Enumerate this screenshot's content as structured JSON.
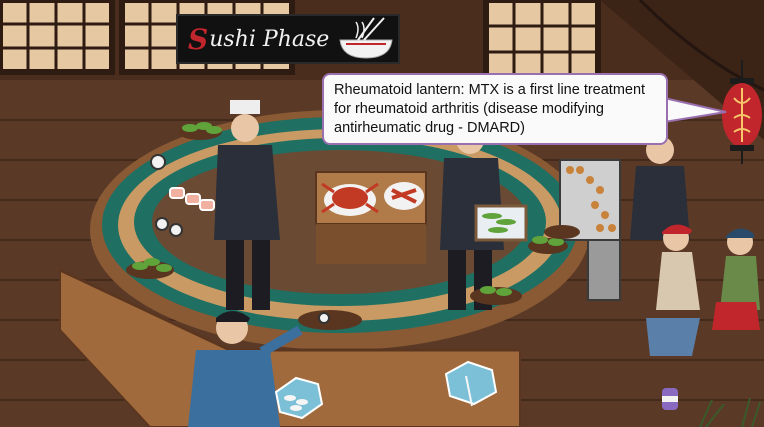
{
  "sign": {
    "first_letter": "S",
    "rest": "ushi Phase"
  },
  "callout": {
    "text": "Rheumatoid lantern: MTX is a first line treatment for rheumatoid arthritis (disease modifying antirheumatic drug - DMARD)"
  },
  "colors": {
    "bubble_border": "#9a6fb0",
    "sign_accent": "#c0262c",
    "lantern": "#c0262c",
    "conveyor": "#1f6f62",
    "wood": "#8a5a34"
  }
}
